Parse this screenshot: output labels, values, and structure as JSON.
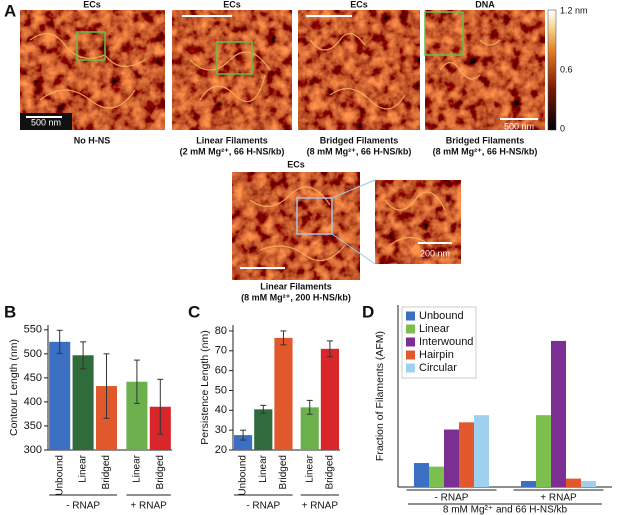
{
  "panel_a": {
    "label": "A",
    "titles": [
      "ECs",
      "ECs",
      "ECs",
      "DNA",
      "ECs"
    ],
    "captions": [
      [
        "No H-NS"
      ],
      [
        "Linear Filaments",
        "(2 mM Mg²⁺, 66 H-NS/kb)"
      ],
      [
        "Bridged Filaments",
        "(8 mM Mg²⁺, 66 H-NS/kb)"
      ],
      [
        "Bridged Filaments",
        "(8 mM Mg²⁺, 66 H-NS/kb)"
      ],
      [
        "Linear Filaments",
        "(8 mM Mg²⁺, 200 H-NS/kb)"
      ]
    ],
    "scale_labels": [
      "500 nm",
      "500 nm",
      "200 nm"
    ],
    "colorbar_labels": [
      "1.2 nm",
      "0.6",
      "0"
    ]
  },
  "chart_data": [
    {
      "type": "bar",
      "panel": "B",
      "ylabel": "Contour Length (nm)",
      "categories": [
        "Unbound",
        "Linear",
        "Bridged",
        "Linear",
        "Bridged"
      ],
      "values": [
        525,
        497,
        433,
        442,
        390
      ],
      "errors": [
        24,
        28,
        67,
        45,
        57
      ],
      "colors": [
        "#3b6fc2",
        "#2f6b3b",
        "#e0582b",
        "#6cb04d",
        "#d8262b"
      ],
      "groups": [
        "- RNAP",
        "+ RNAP"
      ],
      "ylim": [
        300,
        560
      ],
      "yticks": [
        300,
        350,
        400,
        450,
        500,
        550
      ]
    },
    {
      "type": "bar",
      "panel": "C",
      "ylabel": "Persistence Length (nm)",
      "categories": [
        "Unbound",
        "Linear",
        "Bridged",
        "Linear",
        "Bridged"
      ],
      "values": [
        27.5,
        40.5,
        76.5,
        41.5,
        71
      ],
      "errors": [
        2.5,
        2,
        3.5,
        3.5,
        4
      ],
      "colors": [
        "#3b6fc2",
        "#2f6b3b",
        "#e0582b",
        "#6cb04d",
        "#d8262b"
      ],
      "groups": [
        "- RNAP",
        "+ RNAP"
      ],
      "ylim": [
        20,
        83
      ],
      "yticks": [
        20,
        30,
        40,
        50,
        60,
        70,
        80
      ]
    },
    {
      "type": "grouped_bar",
      "panel": "D",
      "ylabel": "Fraction of Filaments (AFM)",
      "xlabel": "8 mM Mg²⁺ and 66 H-NS/kb",
      "categories": [
        "- RNAP",
        "+ RNAP"
      ],
      "series": [
        {
          "name": "Unbound",
          "color": "#3b6fc2",
          "values": [
            0.1,
            0.025
          ]
        },
        {
          "name": "Linear",
          "color": "#7dbf4f",
          "values": [
            0.085,
            0.3
          ]
        },
        {
          "name": "Interwound",
          "color": "#7b2f93",
          "values": [
            0.24,
            0.61
          ]
        },
        {
          "name": "Hairpin",
          "color": "#e0582b",
          "values": [
            0.27,
            0.035
          ]
        },
        {
          "name": "Circular",
          "color": "#9fd0ef",
          "values": [
            0.3,
            0.025
          ]
        }
      ],
      "ylim": [
        0,
        0.76
      ],
      "legend": "upper left"
    }
  ]
}
